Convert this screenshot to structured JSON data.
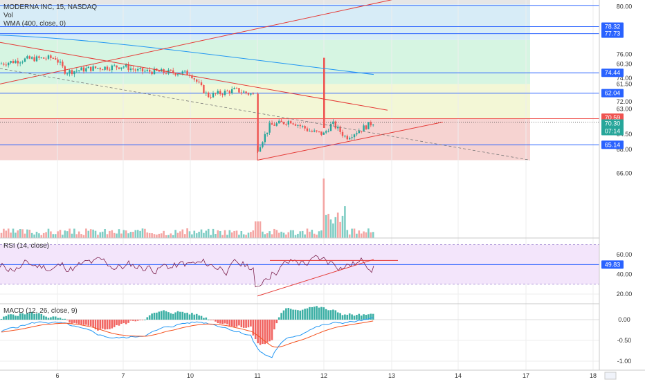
{
  "header": {
    "symbol_line": "MODERNA INC, 15, NASDAQ",
    "vol_label": "Vol",
    "wma_label": "WMA (400, close, 0)"
  },
  "rsi": {
    "label": "RSI (14, close)"
  },
  "macd": {
    "label": "MACD (12, 26, close, 9)"
  },
  "colors": {
    "bull": "#26a69a",
    "bear": "#ef5350",
    "vol_bull": "#7fcdc4",
    "vol_bear": "#f4a5a3",
    "hline": "#2962ff",
    "trend": "#e53935",
    "wma": "#2196f3",
    "rsi_line": "#7b1f4b",
    "rsi_band": "#f3e5fb",
    "macd_line": "#2196f3",
    "signal_line": "#f4511e",
    "zone_red": "#f6d3d1",
    "zone_yellow": "#f3f7d6",
    "zone_green": "#d6f5e2",
    "zone_blue": "#d7ecf7",
    "zone_grey": "#e6e6e6"
  },
  "chart_data": [
    {
      "type": "candlestick",
      "title": "MODERNA INC, 15, NASDAQ",
      "x_ticks": [
        "6",
        "7",
        "10",
        "11",
        "12",
        "13",
        "14",
        "17",
        "18"
      ],
      "y_ticks": [
        "80.00",
        "76.00",
        "74.00",
        "72.00",
        "68.00",
        "66.00",
        "64.50",
        "63.00",
        "61.50",
        "60.30"
      ],
      "price_badges": [
        {
          "label": "78.32",
          "color": "#2962ff"
        },
        {
          "label": "77.73",
          "color": "#2962ff"
        },
        {
          "label": "74.44",
          "color": "#2962ff"
        },
        {
          "label": "70.59",
          "color": "#ef5350"
        },
        {
          "label": "70.30",
          "color": "#26a69a"
        },
        {
          "label": "07:14",
          "color": "#26a69a"
        },
        {
          "label": "65.14",
          "color": "#2962ff"
        },
        {
          "label": "62.04",
          "color": "#2962ff"
        }
      ],
      "horizontal_levels": [
        80.1,
        78.32,
        77.73,
        74.44,
        65.14,
        62.04
      ],
      "zones": [
        {
          "from": 67.1,
          "to": 70.59,
          "color": "red"
        },
        {
          "from": 70.59,
          "to": 73.5,
          "color": "yellow"
        },
        {
          "from": 73.5,
          "to": 77.2,
          "color": "green"
        },
        {
          "from": 77.2,
          "to": 80.2,
          "color": "blue"
        },
        {
          "from": 80.2,
          "to": 82.5,
          "color": "grey"
        }
      ],
      "ohlc_summary": {
        "day_6_open": 75.5,
        "day_11_low": 67.1,
        "day_12_spike_high": 75.7,
        "last": 70.3
      },
      "legend": [
        "Vol",
        "WMA (400, close, 0)"
      ]
    },
    {
      "type": "line",
      "title": "RSI (14, close)",
      "y_ticks": [
        "60.00",
        "40.00",
        "20.00"
      ],
      "band": [
        30,
        70
      ],
      "levels": [
        49.83
      ],
      "last_value": "49.83"
    },
    {
      "type": "bar",
      "title": "MACD (12, 26, close, 9)",
      "y_ticks": [
        "0.00",
        "-0.50",
        "-1.00"
      ],
      "series": [
        {
          "name": "MACD"
        },
        {
          "name": "Signal"
        },
        {
          "name": "Histogram"
        }
      ]
    }
  ]
}
